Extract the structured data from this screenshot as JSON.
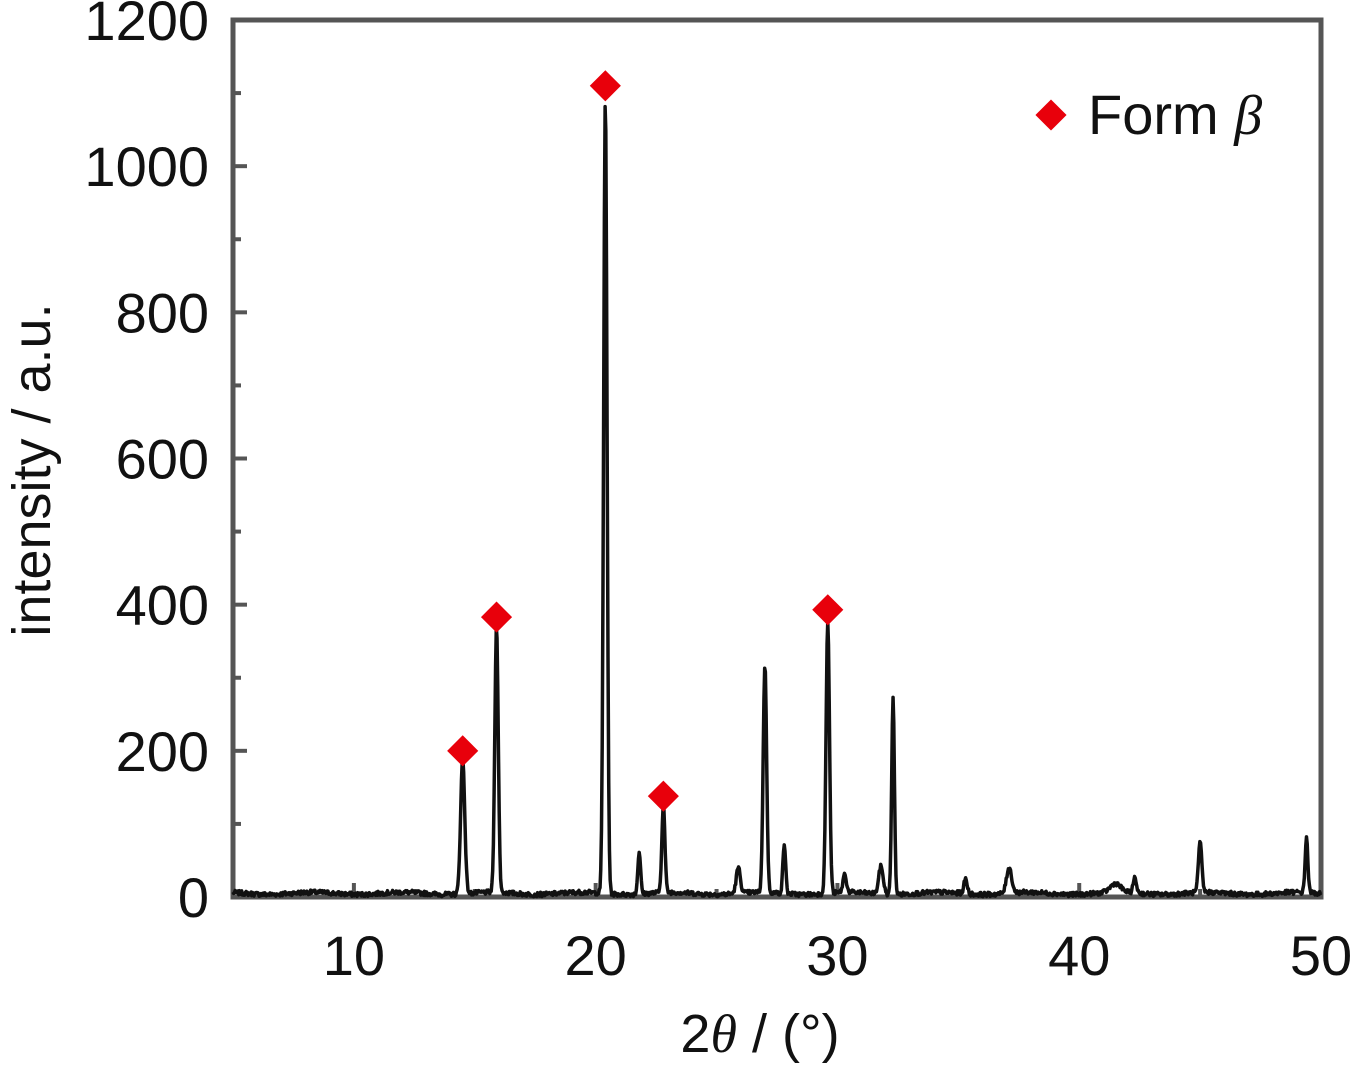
{
  "chart_data": {
    "type": "line",
    "xlabel_prefix": "2",
    "xlabel_symbol": "θ",
    "xlabel_suffix": " / (°)",
    "ylabel": "intensity / a.u.",
    "xlim": [
      5,
      50
    ],
    "ylim": [
      0,
      1200
    ],
    "xticks": [
      10,
      20,
      30,
      40,
      50
    ],
    "yticks": [
      0,
      200,
      400,
      600,
      800,
      1000,
      1200
    ],
    "grid": false,
    "legend": {
      "position": "top-right",
      "marker": "diamond",
      "marker_color": "#e8000b",
      "label_prefix": "Form ",
      "label_symbol": "β"
    },
    "colors": {
      "line": "#111111",
      "marker": "#e8000b",
      "axes": "#444444"
    },
    "baseline": 5,
    "peaks": [
      {
        "x": 14.5,
        "y": 185,
        "w": 0.12
      },
      {
        "x": 15.9,
        "y": 365,
        "w": 0.1
      },
      {
        "x": 20.4,
        "y": 1085,
        "w": 0.1
      },
      {
        "x": 21.8,
        "y": 58,
        "w": 0.08
      },
      {
        "x": 22.8,
        "y": 120,
        "w": 0.09
      },
      {
        "x": 25.9,
        "y": 35,
        "w": 0.12
      },
      {
        "x": 27.0,
        "y": 312,
        "w": 0.1
      },
      {
        "x": 27.8,
        "y": 68,
        "w": 0.08
      },
      {
        "x": 29.6,
        "y": 372,
        "w": 0.1
      },
      {
        "x": 30.3,
        "y": 25,
        "w": 0.1
      },
      {
        "x": 31.8,
        "y": 38,
        "w": 0.13
      },
      {
        "x": 32.3,
        "y": 268,
        "w": 0.08
      },
      {
        "x": 35.3,
        "y": 20,
        "w": 0.1
      },
      {
        "x": 37.1,
        "y": 35,
        "w": 0.15
      },
      {
        "x": 41.5,
        "y": 12,
        "w": 0.3
      },
      {
        "x": 42.3,
        "y": 20,
        "w": 0.1
      },
      {
        "x": 45.0,
        "y": 68,
        "w": 0.1
      },
      {
        "x": 49.4,
        "y": 75,
        "w": 0.08
      }
    ],
    "markers": [
      {
        "x": 14.5,
        "y": 200
      },
      {
        "x": 15.9,
        "y": 383
      },
      {
        "x": 20.4,
        "y": 1110
      },
      {
        "x": 22.8,
        "y": 138
      },
      {
        "x": 29.6,
        "y": 393
      }
    ]
  }
}
